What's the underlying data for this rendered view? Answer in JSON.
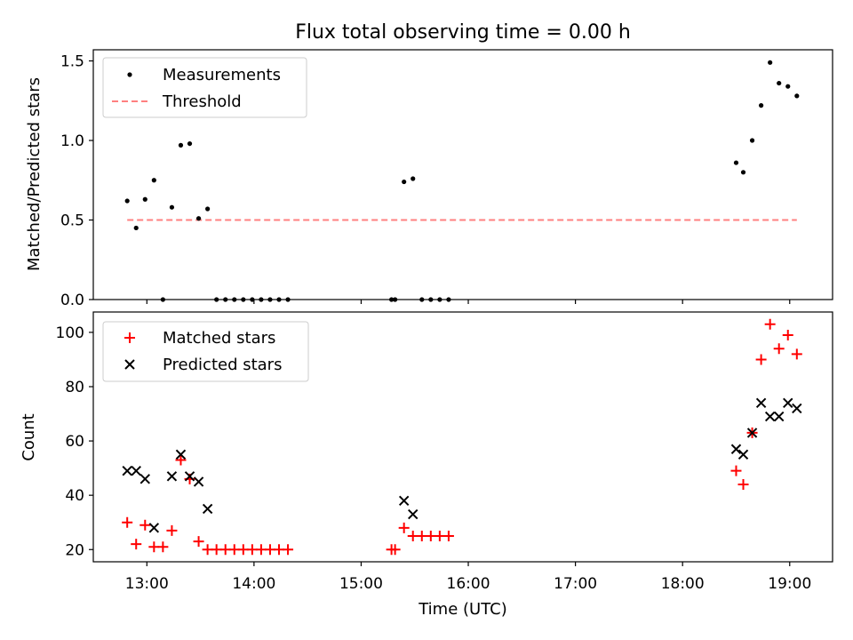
{
  "title": "Flux total observing time = 0.00 h",
  "chart_data": [
    {
      "type": "scatter",
      "ylabel": "Matched/Predicted stars",
      "xlim": [
        "12:30",
        "19:24"
      ],
      "ylim": [
        0,
        1.57
      ],
      "yticks": [
        0.0,
        0.5,
        1.0,
        1.5
      ],
      "ytick_labels": [
        "0.0",
        "0.5",
        "1.0",
        "1.5"
      ],
      "legend_position": "top-left",
      "series": [
        {
          "name": "Measurements",
          "marker": "dot",
          "color": "#000000",
          "points": [
            [
              "12:49",
              0.62
            ],
            [
              "12:54",
              0.45
            ],
            [
              "12:59",
              0.63
            ],
            [
              "13:04",
              0.75
            ],
            [
              "13:09",
              0.0
            ],
            [
              "13:14",
              0.58
            ],
            [
              "13:19",
              0.97
            ],
            [
              "13:24",
              0.98
            ],
            [
              "13:29",
              0.51
            ],
            [
              "13:34",
              0.57
            ],
            [
              "13:39",
              0.0
            ],
            [
              "13:44",
              0.0
            ],
            [
              "13:49",
              0.0
            ],
            [
              "13:54",
              0.0
            ],
            [
              "13:59",
              0.0
            ],
            [
              "14:04",
              0.0
            ],
            [
              "14:09",
              0.0
            ],
            [
              "14:14",
              0.0
            ],
            [
              "14:19",
              0.0
            ],
            [
              "15:17",
              0.0
            ],
            [
              "15:19",
              0.0
            ],
            [
              "15:24",
              0.74
            ],
            [
              "15:29",
              0.76
            ],
            [
              "15:34",
              0.0
            ],
            [
              "15:39",
              0.0
            ],
            [
              "15:44",
              0.0
            ],
            [
              "15:49",
              0.0
            ],
            [
              "18:30",
              0.86
            ],
            [
              "18:34",
              0.8
            ],
            [
              "18:39",
              1.0
            ],
            [
              "18:44",
              1.22
            ],
            [
              "18:49",
              1.49
            ],
            [
              "18:54",
              1.36
            ],
            [
              "18:59",
              1.34
            ],
            [
              "19:04",
              1.28
            ]
          ]
        },
        {
          "name": "Threshold",
          "marker": "dashed-line",
          "color": "#ff8080",
          "x": [
            "12:49",
            "19:04"
          ],
          "y": [
            0.5,
            0.5
          ]
        }
      ]
    },
    {
      "type": "scatter",
      "xlabel": "Time (UTC)",
      "ylabel": "Count",
      "xlim": [
        "12:30",
        "19:24"
      ],
      "ylim": [
        15.5,
        107.5
      ],
      "xticks": [
        "13:00",
        "14:00",
        "15:00",
        "16:00",
        "17:00",
        "18:00",
        "19:00"
      ],
      "yticks": [
        20,
        40,
        60,
        80,
        100
      ],
      "ytick_labels": [
        "20",
        "40",
        "60",
        "80",
        "100"
      ],
      "legend_position": "top-left",
      "series": [
        {
          "name": "Matched stars",
          "marker": "plus",
          "color": "#ff0000",
          "points": [
            [
              "12:49",
              30
            ],
            [
              "12:54",
              22
            ],
            [
              "12:59",
              29
            ],
            [
              "13:04",
              21
            ],
            [
              "13:09",
              21
            ],
            [
              "13:14",
              27
            ],
            [
              "13:19",
              53
            ],
            [
              "13:24",
              46
            ],
            [
              "13:29",
              23
            ],
            [
              "13:34",
              20
            ],
            [
              "13:39",
              20
            ],
            [
              "13:44",
              20
            ],
            [
              "13:49",
              20
            ],
            [
              "13:54",
              20
            ],
            [
              "13:59",
              20
            ],
            [
              "14:04",
              20
            ],
            [
              "14:09",
              20
            ],
            [
              "14:14",
              20
            ],
            [
              "14:19",
              20
            ],
            [
              "15:17",
              20
            ],
            [
              "15:19",
              20
            ],
            [
              "15:24",
              28
            ],
            [
              "15:29",
              25
            ],
            [
              "15:34",
              25
            ],
            [
              "15:39",
              25
            ],
            [
              "15:44",
              25
            ],
            [
              "15:49",
              25
            ],
            [
              "18:30",
              49
            ],
            [
              "18:34",
              44
            ],
            [
              "18:39",
              63
            ],
            [
              "18:44",
              90
            ],
            [
              "18:49",
              103
            ],
            [
              "18:54",
              94
            ],
            [
              "18:59",
              99
            ],
            [
              "19:04",
              92
            ]
          ]
        },
        {
          "name": "Predicted stars",
          "marker": "x",
          "color": "#000000",
          "points": [
            [
              "12:49",
              49
            ],
            [
              "12:54",
              49
            ],
            [
              "12:59",
              46
            ],
            [
              "13:04",
              28
            ],
            [
              "13:14",
              47
            ],
            [
              "13:19",
              55
            ],
            [
              "13:24",
              47
            ],
            [
              "13:29",
              45
            ],
            [
              "13:34",
              35
            ],
            [
              "15:24",
              38
            ],
            [
              "15:29",
              33
            ],
            [
              "18:30",
              57
            ],
            [
              "18:34",
              55
            ],
            [
              "18:39",
              63
            ],
            [
              "18:44",
              74
            ],
            [
              "18:49",
              69
            ],
            [
              "18:54",
              69
            ],
            [
              "18:59",
              74
            ],
            [
              "19:04",
              72
            ]
          ]
        }
      ]
    }
  ]
}
